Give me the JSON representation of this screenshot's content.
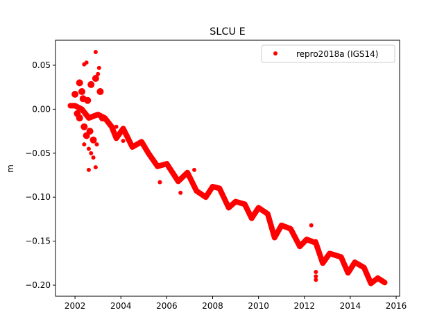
{
  "chart_data": {
    "type": "scatter",
    "title": "SLCU E",
    "xlabel": "",
    "ylabel": "m",
    "xlim": [
      2001.15,
      2016.15
    ],
    "ylim": [
      -0.2126,
      0.0784
    ],
    "xticks": [
      2002,
      2004,
      2006,
      2008,
      2010,
      2012,
      2014,
      2016
    ],
    "xtick_labels": [
      "2002",
      "2004",
      "2006",
      "2008",
      "2010",
      "2012",
      "2014",
      "2016"
    ],
    "yticks": [
      0.05,
      0.0,
      -0.05,
      -0.1,
      -0.15,
      -0.2
    ],
    "ytick_labels": [
      "0.05",
      "0.00",
      "−0.05",
      "−0.10",
      "−0.15",
      "−0.20"
    ],
    "grid": false,
    "legend": {
      "placement": "top-right",
      "entries": [
        "repro2018a (IGS14)"
      ]
    },
    "series": [
      {
        "name": "repro2018a (IGS14)",
        "color": "#ff0000",
        "trend_x": [
          2001.8,
          2002.0,
          2002.3,
          2002.6,
          2003.0,
          2003.3,
          2003.6,
          2003.8,
          2004.1,
          2004.5,
          2004.9,
          2005.2,
          2005.6,
          2006.0,
          2006.5,
          2006.9,
          2007.3,
          2007.7,
          2008.0,
          2008.3,
          2008.7,
          2009.0,
          2009.4,
          2009.7,
          2010.0,
          2010.4,
          2010.7,
          2011.0,
          2011.4,
          2011.8,
          2012.1,
          2012.5,
          2012.8,
          2013.1,
          2013.6,
          2013.9,
          2014.2,
          2014.6,
          2014.9,
          2015.2,
          2015.5
        ],
        "trend_y": [
          0.004,
          0.004,
          0.0,
          -0.01,
          -0.006,
          -0.01,
          -0.02,
          -0.033,
          -0.022,
          -0.043,
          -0.037,
          -0.05,
          -0.065,
          -0.062,
          -0.082,
          -0.072,
          -0.093,
          -0.1,
          -0.088,
          -0.09,
          -0.112,
          -0.105,
          -0.108,
          -0.124,
          -0.112,
          -0.119,
          -0.146,
          -0.132,
          -0.136,
          -0.156,
          -0.148,
          -0.152,
          -0.175,
          -0.164,
          -0.168,
          -0.186,
          -0.174,
          -0.18,
          -0.198,
          -0.192,
          -0.197
        ],
        "scatter_x": [
          2002.4,
          2002.5,
          2002.9,
          2003.0,
          2003.05,
          2002.6,
          2002.9,
          2002.4,
          2002.7,
          2002.2,
          2002.0,
          2002.3,
          2002.5,
          2002.8,
          2002.6,
          2002.2,
          2002.7,
          2002.9,
          2003.1,
          2002.4,
          2002.8,
          2002.55,
          2002.35,
          2002.65,
          2002.95,
          2002.1,
          2003.2,
          2003.8,
          2004.1,
          2003.9,
          2005.7,
          2006.6,
          2007.2,
          2012.3,
          2012.5,
          2012.5,
          2012.5,
          2012.5
        ],
        "scatter_y": [
          0.051,
          0.053,
          0.065,
          0.04,
          0.047,
          -0.069,
          -0.066,
          -0.04,
          -0.05,
          0.03,
          0.017,
          0.02,
          -0.03,
          -0.035,
          -0.045,
          -0.01,
          0.028,
          0.035,
          0.02,
          -0.02,
          -0.055,
          0.01,
          0.012,
          -0.025,
          -0.04,
          -0.005,
          -0.01,
          -0.02,
          -0.036,
          -0.028,
          -0.083,
          -0.095,
          -0.069,
          -0.132,
          -0.15,
          -0.185,
          -0.19,
          -0.194
        ]
      }
    ]
  }
}
